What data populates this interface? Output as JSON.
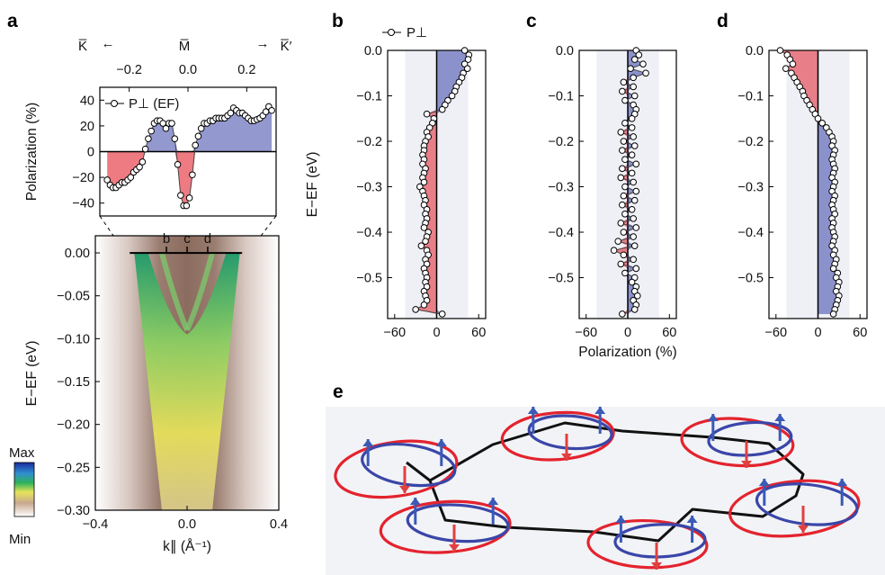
{
  "panel_labels": {
    "a": "a",
    "b": "b",
    "c": "c",
    "d": "d",
    "e": "e"
  },
  "colors": {
    "positive": "#3a46a8",
    "negative": "#e3232e",
    "axis": "#000000"
  },
  "chart_data": [
    {
      "panel": "a-top",
      "type": "area",
      "title": "",
      "xlabel": "",
      "ylabel": "Polarization (%)",
      "legend": "P⊥ (EF)",
      "legend_position": "top-left",
      "top_axis_ticks": [
        "−0.2",
        "0.0",
        "0.2"
      ],
      "top_axis_labels": {
        "left": "K̅",
        "middle": "M̅",
        "right": "K̅′",
        "left_arrow": "←",
        "right_arrow": "→"
      },
      "xlim": [
        -0.3,
        0.3
      ],
      "ylim": [
        -50,
        50
      ],
      "y_ticks": [
        "40",
        "20",
        "0",
        "−20",
        "−40"
      ],
      "x": [
        -0.275,
        -0.265,
        -0.255,
        -0.245,
        -0.235,
        -0.225,
        -0.215,
        -0.205,
        -0.195,
        -0.185,
        -0.175,
        -0.165,
        -0.155,
        -0.145,
        -0.135,
        -0.125,
        -0.115,
        -0.105,
        -0.095,
        -0.085,
        -0.075,
        -0.065,
        -0.055,
        -0.045,
        -0.035,
        -0.025,
        -0.015,
        -0.005,
        0.005,
        0.015,
        0.025,
        0.035,
        0.045,
        0.055,
        0.065,
        0.075,
        0.085,
        0.095,
        0.105,
        0.115,
        0.125,
        0.135,
        0.145,
        0.155,
        0.165,
        0.175,
        0.185,
        0.195,
        0.205,
        0.215,
        0.225,
        0.235,
        0.245,
        0.255,
        0.265,
        0.275,
        0.285
      ],
      "y": [
        -22,
        -26,
        -28,
        -28,
        -26,
        -24,
        -24,
        -22,
        -20,
        -16,
        -14,
        -12,
        -8,
        2,
        10,
        16,
        22,
        24,
        24,
        22,
        18,
        22,
        22,
        10,
        -10,
        -34,
        -42,
        -42,
        -36,
        -18,
        5,
        12,
        18,
        22,
        22,
        24,
        24,
        26,
        26,
        26,
        26,
        28,
        30,
        34,
        32,
        30,
        30,
        28,
        26,
        24,
        24,
        25,
        26,
        28,
        31,
        35,
        32
      ]
    },
    {
      "panel": "a-bottom",
      "type": "heatmap",
      "title": "",
      "xlabel": "k∥ (Å⁻¹)",
      "ylabel": "E−EF (eV)",
      "xlim": [
        -0.4,
        0.4
      ],
      "ylim": [
        -0.3,
        0.02
      ],
      "x_ticks": [
        "−0.4",
        "0.0",
        "0.4"
      ],
      "y_ticks": [
        "0.00",
        "−0.05",
        "−0.10",
        "−0.15",
        "−0.20",
        "−0.25",
        "−0.30"
      ],
      "markers": [
        "b",
        "c",
        "d"
      ],
      "colorbar": {
        "max": "Max",
        "min": "Min"
      }
    },
    {
      "panel": "b",
      "type": "area",
      "title": "",
      "xlabel": "",
      "ylabel": "E−EF (eV)",
      "legend": "P⊥",
      "xlim": [
        -70,
        70
      ],
      "ylim": [
        -0.59,
        0.0
      ],
      "x_ticks": [
        "−60",
        "0",
        "60"
      ],
      "y_ticks": [
        "0.0",
        "−0.1",
        "−0.2",
        "−0.3",
        "−0.4",
        "−0.5"
      ],
      "energy": [
        0.0,
        -0.01,
        -0.02,
        -0.03,
        -0.04,
        -0.05,
        -0.06,
        -0.07,
        -0.08,
        -0.09,
        -0.1,
        -0.11,
        -0.12,
        -0.13,
        -0.14,
        -0.15,
        -0.16,
        -0.17,
        -0.18,
        -0.19,
        -0.2,
        -0.21,
        -0.22,
        -0.23,
        -0.24,
        -0.25,
        -0.26,
        -0.27,
        -0.28,
        -0.29,
        -0.3,
        -0.31,
        -0.32,
        -0.33,
        -0.34,
        -0.35,
        -0.36,
        -0.37,
        -0.38,
        -0.39,
        -0.4,
        -0.41,
        -0.42,
        -0.43,
        -0.44,
        -0.45,
        -0.46,
        -0.47,
        -0.48,
        -0.49,
        -0.5,
        -0.51,
        -0.52,
        -0.53,
        -0.54,
        -0.55,
        -0.56,
        -0.57,
        -0.58
      ],
      "polarization": [
        40,
        46,
        45,
        40,
        44,
        38,
        36,
        32,
        28,
        26,
        22,
        16,
        12,
        8,
        -14,
        -4,
        -6,
        -10,
        -14,
        -12,
        -16,
        -18,
        -18,
        -20,
        -18,
        -20,
        -16,
        -18,
        -20,
        -18,
        -24,
        -20,
        -18,
        -16,
        -18,
        -14,
        -16,
        -14,
        -16,
        -18,
        -12,
        -14,
        -16,
        -22,
        -14,
        -12,
        -16,
        -14,
        -18,
        -16,
        -14,
        -16,
        -14,
        -18,
        -16,
        -14,
        -18,
        -30,
        8
      ]
    },
    {
      "panel": "c",
      "type": "area",
      "title": "",
      "xlabel": "Polarization (%)",
      "ylabel": "",
      "xlim": [
        -70,
        70
      ],
      "ylim": [
        -0.59,
        0.0
      ],
      "x_ticks": [
        "−60",
        "0",
        "60"
      ],
      "y_ticks": [
        "0.0",
        "−0.1",
        "−0.2",
        "−0.3",
        "−0.4",
        "−0.5"
      ],
      "energy": [
        0.0,
        -0.01,
        -0.02,
        -0.03,
        -0.04,
        -0.05,
        -0.06,
        -0.07,
        -0.08,
        -0.09,
        -0.1,
        -0.11,
        -0.12,
        -0.13,
        -0.14,
        -0.15,
        -0.16,
        -0.17,
        -0.18,
        -0.19,
        -0.2,
        -0.21,
        -0.22,
        -0.23,
        -0.24,
        -0.25,
        -0.26,
        -0.27,
        -0.28,
        -0.29,
        -0.3,
        -0.31,
        -0.32,
        -0.33,
        -0.34,
        -0.35,
        -0.36,
        -0.37,
        -0.38,
        -0.39,
        -0.4,
        -0.41,
        -0.42,
        -0.43,
        -0.44,
        -0.45,
        -0.46,
        -0.47,
        -0.48,
        -0.49,
        -0.5,
        -0.51,
        -0.52,
        -0.53,
        -0.54,
        -0.55,
        -0.56,
        -0.57,
        -0.58
      ],
      "polarization": [
        12,
        16,
        10,
        22,
        4,
        26,
        8,
        -6,
        8,
        -8,
        10,
        -4,
        8,
        12,
        10,
        6,
        -4,
        6,
        -10,
        8,
        -6,
        10,
        -8,
        6,
        -4,
        12,
        -8,
        6,
        -10,
        8,
        -4,
        12,
        -6,
        10,
        -8,
        6,
        -4,
        8,
        -10,
        12,
        -6,
        8,
        -14,
        10,
        -20,
        -6,
        8,
        -10,
        12,
        -4,
        10,
        6,
        12,
        10,
        14,
        8,
        12,
        10,
        -8
      ]
    },
    {
      "panel": "d",
      "type": "area",
      "title": "",
      "xlabel": "",
      "ylabel": "",
      "xlim": [
        -70,
        70
      ],
      "ylim": [
        -0.59,
        0.0
      ],
      "x_ticks": [
        "−60",
        "0",
        "60"
      ],
      "y_ticks": [
        "0.0",
        "−0.1",
        "−0.2",
        "−0.3",
        "−0.4",
        "−0.5"
      ],
      "energy": [
        0.0,
        -0.01,
        -0.02,
        -0.03,
        -0.04,
        -0.05,
        -0.06,
        -0.07,
        -0.08,
        -0.09,
        -0.1,
        -0.11,
        -0.12,
        -0.13,
        -0.14,
        -0.15,
        -0.16,
        -0.17,
        -0.18,
        -0.19,
        -0.2,
        -0.21,
        -0.22,
        -0.23,
        -0.24,
        -0.25,
        -0.26,
        -0.27,
        -0.28,
        -0.29,
        -0.3,
        -0.31,
        -0.32,
        -0.33,
        -0.34,
        -0.35,
        -0.36,
        -0.37,
        -0.38,
        -0.39,
        -0.4,
        -0.41,
        -0.42,
        -0.43,
        -0.44,
        -0.45,
        -0.46,
        -0.47,
        -0.48,
        -0.49,
        -0.5,
        -0.51,
        -0.52,
        -0.53,
        -0.54,
        -0.55,
        -0.56,
        -0.57,
        -0.58
      ],
      "polarization": [
        -54,
        -44,
        -40,
        -36,
        -46,
        -38,
        -34,
        -30,
        -26,
        -22,
        -20,
        -16,
        -12,
        -8,
        -4,
        0,
        6,
        12,
        16,
        20,
        22,
        20,
        24,
        22,
        20,
        22,
        24,
        22,
        20,
        24,
        22,
        20,
        24,
        22,
        20,
        22,
        24,
        20,
        22,
        20,
        22,
        24,
        22,
        20,
        24,
        22,
        26,
        24,
        22,
        28,
        26,
        30,
        28,
        26,
        30,
        28,
        26,
        24,
        22
      ]
    },
    {
      "panel": "e",
      "type": "diagram",
      "title": "",
      "description_visible": false
    }
  ]
}
